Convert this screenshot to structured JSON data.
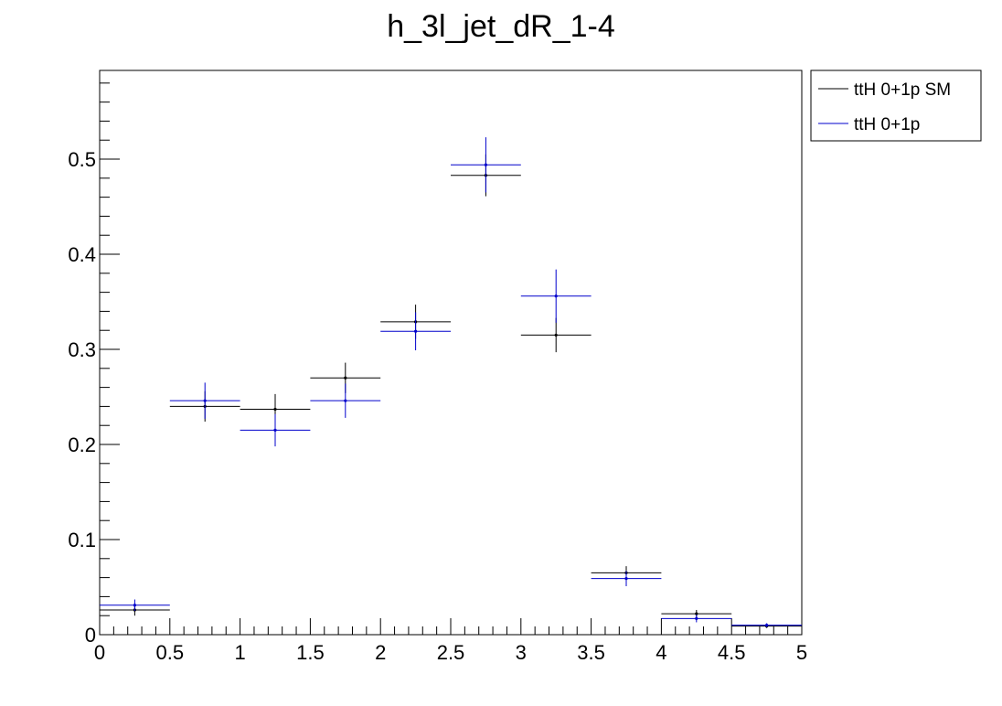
{
  "chart_data": {
    "type": "scatter",
    "title": "h_3l_jet_dR_1-4",
    "xlabel": "",
    "ylabel": "",
    "xlim": [
      0,
      5
    ],
    "ylim": [
      0,
      0.5933
    ],
    "x_ticks": [
      "0",
      "0.5",
      "1",
      "1.5",
      "2",
      "2.5",
      "3",
      "3.5",
      "4",
      "4.5",
      "5"
    ],
    "y_ticks": [
      "0",
      "0.1",
      "0.2",
      "0.3",
      "0.4",
      "0.5"
    ],
    "bin_edges": [
      0,
      0.5,
      1,
      1.5,
      2,
      2.5,
      3,
      3.5,
      4,
      4.5,
      5
    ],
    "grid": false,
    "legend_position": "top-right",
    "series": [
      {
        "name": "ttH 0+1p SM",
        "color": "#000000",
        "x": [
          0.25,
          0.75,
          1.25,
          1.75,
          2.25,
          2.75,
          3.25,
          3.75,
          4.25,
          4.75
        ],
        "values": [
          0.026,
          0.24,
          0.237,
          0.27,
          0.329,
          0.483,
          0.315,
          0.065,
          0.022,
          0.009
        ],
        "errors": [
          0.006,
          0.016,
          0.016,
          0.016,
          0.018,
          0.022,
          0.018,
          0.007,
          0.004,
          0.002
        ]
      },
      {
        "name": "ttH 0+1p",
        "color": "#0000cc",
        "x": [
          0.25,
          0.75,
          1.25,
          1.75,
          2.25,
          2.75,
          3.25,
          3.75,
          4.25,
          4.75
        ],
        "values": [
          0.031,
          0.246,
          0.215,
          0.246,
          0.319,
          0.494,
          0.356,
          0.059,
          0.017,
          0.01
        ],
        "errors": [
          0.006,
          0.019,
          0.017,
          0.018,
          0.02,
          0.029,
          0.028,
          0.008,
          0.004,
          0.002
        ]
      }
    ]
  }
}
